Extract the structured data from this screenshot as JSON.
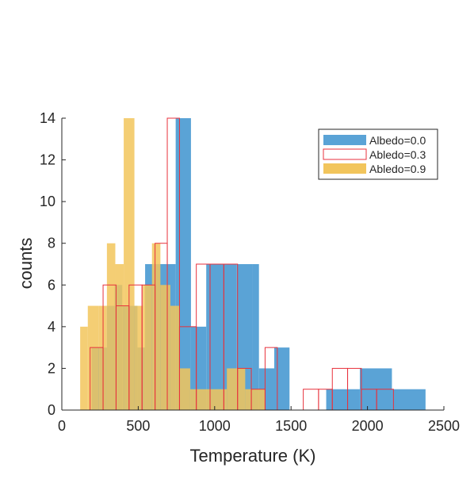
{
  "chart_data": {
    "type": "bar",
    "xlabel": "Temperature (K)",
    "ylabel": "counts",
    "xlim": [
      0,
      2500
    ],
    "ylim": [
      0,
      14
    ],
    "xticks": [
      0,
      500,
      1000,
      1500,
      2000,
      2500
    ],
    "yticks": [
      0,
      2,
      4,
      6,
      8,
      10,
      12,
      14
    ],
    "grid": false,
    "legend_position": "top-right",
    "series": [
      {
        "name": "Albedo=0.0",
        "style": "filled",
        "color": "#5aa3d6",
        "bins": [
          {
            "x0": 195,
            "x1": 245,
            "y": 3
          },
          {
            "x0": 245,
            "x1": 295,
            "y": 3
          },
          {
            "x0": 295,
            "x1": 345,
            "y": 5
          },
          {
            "x0": 345,
            "x1": 395,
            "y": 6
          },
          {
            "x0": 395,
            "x1": 445,
            "y": 5
          },
          {
            "x0": 445,
            "x1": 495,
            "y": 5
          },
          {
            "x0": 495,
            "x1": 545,
            "y": 3
          },
          {
            "x0": 545,
            "x1": 605,
            "y": 7
          },
          {
            "x0": 605,
            "x1": 685,
            "y": 7
          },
          {
            "x0": 685,
            "x1": 745,
            "y": 7
          },
          {
            "x0": 745,
            "x1": 845,
            "y": 14
          },
          {
            "x0": 845,
            "x1": 945,
            "y": 4
          },
          {
            "x0": 945,
            "x1": 1045,
            "y": 7
          },
          {
            "x0": 1045,
            "x1": 1145,
            "y": 7
          },
          {
            "x0": 1145,
            "x1": 1245,
            "y": 7
          },
          {
            "x0": 1245,
            "x1": 1290,
            "y": 7
          },
          {
            "x0": 1290,
            "x1": 1390,
            "y": 2
          },
          {
            "x0": 1390,
            "x1": 1490,
            "y": 3
          },
          {
            "x0": 1730,
            "x1": 1950,
            "y": 1
          },
          {
            "x0": 1950,
            "x1": 2160,
            "y": 2
          },
          {
            "x0": 2160,
            "x1": 2380,
            "y": 1
          }
        ]
      },
      {
        "name": "Abledo=0.3",
        "style": "outline",
        "color": "#e8323c",
        "bins": [
          {
            "x0": 185,
            "x1": 270,
            "y": 3
          },
          {
            "x0": 270,
            "x1": 355,
            "y": 6
          },
          {
            "x0": 355,
            "x1": 440,
            "y": 5
          },
          {
            "x0": 440,
            "x1": 525,
            "y": 6
          },
          {
            "x0": 525,
            "x1": 610,
            "y": 6
          },
          {
            "x0": 610,
            "x1": 690,
            "y": 8
          },
          {
            "x0": 690,
            "x1": 770,
            "y": 14
          },
          {
            "x0": 770,
            "x1": 880,
            "y": 4
          },
          {
            "x0": 880,
            "x1": 970,
            "y": 7
          },
          {
            "x0": 970,
            "x1": 1060,
            "y": 7
          },
          {
            "x0": 1060,
            "x1": 1150,
            "y": 7
          },
          {
            "x0": 1150,
            "x1": 1240,
            "y": 2
          },
          {
            "x0": 1240,
            "x1": 1330,
            "y": 1
          },
          {
            "x0": 1330,
            "x1": 1410,
            "y": 3
          },
          {
            "x0": 1410,
            "x1": 1580,
            "y": 0
          },
          {
            "x0": 1580,
            "x1": 1680,
            "y": 1
          },
          {
            "x0": 1680,
            "x1": 1770,
            "y": 1
          },
          {
            "x0": 1770,
            "x1": 1870,
            "y": 2
          },
          {
            "x0": 1870,
            "x1": 1960,
            "y": 2
          },
          {
            "x0": 1960,
            "x1": 2060,
            "y": 1
          },
          {
            "x0": 2060,
            "x1": 2170,
            "y": 1
          }
        ]
      },
      {
        "name": "Abledo=0.9",
        "style": "filled",
        "color": "#f2c55c",
        "bins": [
          {
            "x0": 120,
            "x1": 170,
            "y": 4
          },
          {
            "x0": 170,
            "x1": 240,
            "y": 5
          },
          {
            "x0": 240,
            "x1": 295,
            "y": 5
          },
          {
            "x0": 295,
            "x1": 350,
            "y": 8
          },
          {
            "x0": 350,
            "x1": 405,
            "y": 7
          },
          {
            "x0": 405,
            "x1": 475,
            "y": 14
          },
          {
            "x0": 475,
            "x1": 530,
            "y": 5
          },
          {
            "x0": 530,
            "x1": 590,
            "y": 6
          },
          {
            "x0": 590,
            "x1": 645,
            "y": 8
          },
          {
            "x0": 645,
            "x1": 710,
            "y": 6
          },
          {
            "x0": 710,
            "x1": 770,
            "y": 5
          },
          {
            "x0": 770,
            "x1": 840,
            "y": 2
          },
          {
            "x0": 840,
            "x1": 1080,
            "y": 1
          },
          {
            "x0": 1080,
            "x1": 1200,
            "y": 2
          },
          {
            "x0": 1200,
            "x1": 1330,
            "y": 1
          }
        ]
      }
    ]
  }
}
